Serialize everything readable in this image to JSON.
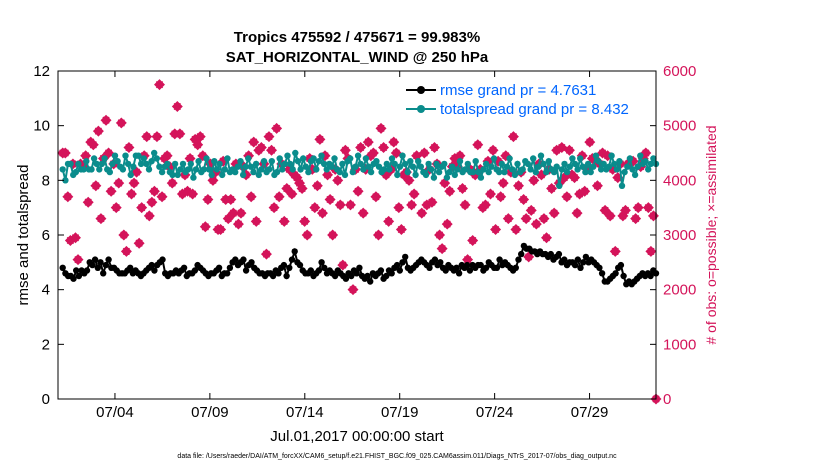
{
  "chart_data": {
    "type": "line",
    "title": "Tropics 475592 / 475671 = 99.983%",
    "subtitle": "SAT_HORIZONTAL_WIND @ 250 hPa",
    "xlabel": "Jul.01,2017 00:00:00 start",
    "ylabel": "rmse and totalspread",
    "y2label": "# of obs: o=possible; ×=assimilated",
    "xlim": [
      0,
      31.5
    ],
    "ylim": [
      0,
      12
    ],
    "y2lim": [
      0,
      6000
    ],
    "xticks": [
      3,
      8,
      13,
      18,
      23,
      28
    ],
    "xtick_labels": [
      "07/04",
      "07/09",
      "07/14",
      "07/19",
      "07/24",
      "07/29"
    ],
    "yticks": [
      "0",
      "2",
      "4",
      "6",
      "8",
      "10",
      "12"
    ],
    "y2ticks": [
      "0",
      "1000",
      "2000",
      "3000",
      "4000",
      "5000",
      "6000"
    ],
    "footer": "data file: /Users/raeder/DAI/ATM_forcXX/CAM6_setup/f.e21.FHIST_BGC.f09_025.CAM6assim.011/Diags_NTrS_2017-07/obs_diag_output.nc",
    "colors": {
      "rmse": "#000000",
      "spread": "#0a8c8c",
      "obs": "#d4145a",
      "legend_text": "#0066ff"
    },
    "series": [
      {
        "name": "rmse grand pr = 4.7631",
        "values": [
          4.8,
          4.6,
          4.5,
          4.5,
          4.4,
          4.7,
          4.5,
          4.7,
          4.6,
          4.7,
          5.0,
          4.9,
          5.1,
          4.8,
          5.0,
          4.6,
          4.9,
          5.1,
          4.8,
          4.8,
          4.7,
          4.6,
          4.6,
          4.6,
          4.7,
          4.8,
          4.6,
          4.7,
          4.6,
          4.5,
          4.6,
          4.7,
          4.8,
          4.9,
          4.7,
          4.9,
          5.0,
          5.1,
          4.6,
          4.5,
          4.6,
          4.6,
          4.7,
          4.6,
          4.7,
          4.8,
          4.5,
          4.6,
          4.6,
          4.7,
          4.9,
          4.8,
          4.7,
          4.6,
          4.5,
          4.6,
          4.6,
          4.7,
          4.8,
          4.5,
          4.6,
          4.6,
          4.8,
          5.0,
          5.1,
          4.9,
          5.0,
          5.1,
          4.7,
          4.9,
          5.0,
          4.8,
          4.7,
          4.6,
          4.6,
          4.5,
          4.6,
          4.6,
          4.5,
          4.7,
          4.6,
          4.8,
          4.9,
          4.5,
          4.8,
          5.1,
          5.4,
          5.0,
          4.9,
          4.7,
          4.6,
          4.6,
          4.7,
          4.5,
          4.6,
          4.7,
          5.0,
          4.8,
          4.6,
          4.7,
          4.6,
          4.5,
          4.7,
          4.6,
          4.5,
          4.4,
          4.6,
          4.5,
          4.7,
          4.6,
          4.8,
          4.5,
          4.4,
          4.5,
          4.3,
          4.6,
          4.5,
          4.6,
          4.7,
          4.4,
          4.5,
          4.7,
          4.6,
          4.8,
          4.9,
          4.7,
          5.0,
          5.2,
          4.8,
          4.7,
          4.8,
          4.9,
          5.0,
          5.1,
          5.0,
          4.9,
          4.8,
          5.0,
          5.1,
          4.9,
          5.0,
          4.8,
          4.7,
          4.9,
          4.8,
          4.7,
          4.8,
          4.6,
          4.9,
          4.8,
          4.9,
          4.7,
          4.9,
          4.8,
          4.9,
          4.9,
          4.7,
          4.8,
          5.0,
          4.9,
          4.8,
          4.8,
          5.1,
          4.9,
          5.0,
          4.9,
          4.8,
          4.7,
          4.8,
          5.1,
          5.3,
          5.6,
          5.5,
          5.5,
          5.4,
          5.4,
          5.3,
          5.4,
          5.3,
          5.3,
          5.2,
          5.3,
          5.1,
          5.2,
          5.3,
          5.0,
          5.1,
          4.9,
          5.0,
          5.0,
          4.9,
          5.1,
          4.8,
          5.0,
          5.2,
          5.0,
          5.1,
          5.0,
          4.9,
          4.8,
          4.6,
          4.3,
          4.3,
          4.4,
          4.5,
          4.6,
          4.8,
          4.9,
          4.5,
          4.2,
          4.3,
          4.2,
          4.3,
          4.4,
          4.5,
          4.6,
          4.5,
          4.6,
          4.5,
          4.7,
          4.6
        ]
      },
      {
        "name": "totalspread grand pr = 8.432",
        "values": [
          8.4,
          8.0,
          8.6,
          8.6,
          8.2,
          8.3,
          8.6,
          8.4,
          8.4,
          8.7,
          8.4,
          8.4,
          8.8,
          8.6,
          8.4,
          8.6,
          8.8,
          8.4,
          8.3,
          8.6,
          8.9,
          8.7,
          8.5,
          8.4,
          8.9,
          8.6,
          8.2,
          8.5,
          8.9,
          8.9,
          8.6,
          8.8,
          8.6,
          8.4,
          8.7,
          9.0,
          8.8,
          8.5,
          8.3,
          8.5,
          8.6,
          8.3,
          8.2,
          8.6,
          8.2,
          8.4,
          8.6,
          8.3,
          8.4,
          8.6,
          8.1,
          8.4,
          8.7,
          8.3,
          8.4,
          8.8,
          8.4,
          8.2,
          8.7,
          8.4,
          8.6,
          8.2,
          8.4,
          8.8,
          8.3,
          8.4,
          8.3,
          8.5,
          8.7,
          8.2,
          8.5,
          8.8,
          8.5,
          8.3,
          8.6,
          8.2,
          8.4,
          8.7,
          8.3,
          8.4,
          8.7,
          8.2,
          8.3,
          8.8,
          8.4,
          8.6,
          8.9,
          8.6,
          8.4,
          9.0,
          8.7,
          8.4,
          8.8,
          8.5,
          8.3,
          8.7,
          8.8,
          8.4,
          8.7,
          8.9,
          8.6,
          8.4,
          8.6,
          8.5,
          8.8,
          8.4,
          8.3,
          8.6,
          8.2,
          8.7,
          8.8,
          8.3,
          8.5,
          8.9,
          8.6,
          8.4,
          8.8,
          8.5,
          8.3,
          8.6,
          8.7,
          8.5,
          8.3,
          8.4,
          8.6,
          8.4,
          8.8,
          8.6,
          8.2,
          8.5,
          8.9,
          8.6,
          8.3,
          8.7,
          8.5,
          8.2,
          8.7,
          8.5,
          8.3,
          8.2,
          8.6,
          8.4,
          8.1,
          8.6,
          8.3,
          8.5,
          8.6,
          8.1,
          8.3,
          8.5,
          8.2,
          8.4,
          8.7,
          8.3,
          8.4,
          8.6,
          8.3,
          8.3,
          8.7,
          8.3,
          8.1,
          8.4,
          8.6,
          8.3,
          8.5,
          8.8,
          8.4,
          8.3,
          8.6,
          8.3,
          8.5,
          8.8,
          8.4,
          8.2,
          8.6,
          8.3,
          8.4,
          8.7,
          8.6,
          8.4,
          8.8,
          8.3,
          8.5,
          8.9,
          8.6,
          8.3,
          8.7,
          8.4,
          8.3,
          8.5,
          7.8,
          8.4,
          8.6,
          8.3,
          8.5,
          8.8,
          8.6,
          8.4,
          8.8,
          8.5,
          8.3,
          8.6,
          8.3,
          8.5,
          8.9,
          8.7,
          8.4,
          8.6,
          8.4,
          8.5,
          8.9,
          8.6,
          8.4,
          8.7,
          7.8,
          8.3,
          8.5,
          8.8,
          8.4,
          8.2,
          8.5,
          8.9,
          8.6,
          8.7,
          8.4,
          8.6,
          8.8,
          8.6
        ]
      },
      {
        "name": "assimilated",
        "axis": "right",
        "values": [
          4500,
          4500,
          3700,
          2900,
          4300,
          2950,
          2550,
          4300,
          4250,
          4450,
          3600,
          4700,
          4650,
          3900,
          4900,
          3300,
          4400,
          5100,
          4500,
          3800,
          4300,
          3500,
          3950,
          5050,
          3000,
          2700,
          4600,
          3750,
          3950,
          4150,
          2850,
          3500,
          4450,
          4800,
          3350,
          3600,
          3800,
          4800,
          5750,
          3700,
          4400,
          4450,
          4250,
          3950,
          4850,
          5350,
          4850,
          3750,
          4100,
          3800,
          4400,
          3750,
          4750,
          4650,
          4800,
          4450,
          3150,
          3650,
          4300,
          4000,
          4150,
          3100,
          3100,
          4350,
          3650,
          3300,
          3650,
          3400,
          4300,
          3200,
          3400,
          4250,
          4100,
          4450,
          3700,
          4700,
          3250,
          4550,
          4600,
          4300,
          2650,
          4800,
          4550,
          3500,
          4950,
          3700,
          4300,
          3250,
          3850,
          4200,
          3750,
          4100,
          4050,
          3950,
          3850,
          3250,
          3000,
          4400,
          4200,
          3500,
          3900,
          4750,
          3400,
          4450,
          4100,
          3650,
          3000,
          4200,
          4000,
          3550,
          2450,
          4550,
          4400,
          3550,
          2000,
          4200,
          3800,
          4600,
          3400,
          4200,
          4700,
          4450,
          4500,
          3700,
          3000,
          4950,
          4600,
          4100,
          3250,
          4200,
          4700,
          4500,
          3500,
          3100,
          4100,
          4150,
          4000,
          3550,
          3750,
          4450,
          5300,
          3400,
          4500,
          3550,
          4200,
          3600,
          4600,
          4300,
          3000,
          2750,
          3950,
          3200,
          3800,
          4250,
          4400,
          4250,
          4450,
          3850,
          3550,
          2550,
          4200,
          2900,
          4100,
          4650,
          4200,
          3500,
          3550,
          4350,
          3750,
          4550,
          3100,
          4350,
          3700,
          3950,
          4450,
          3300,
          4150,
          4800,
          3100,
          3900,
          4150,
          3650,
          3300,
          2600,
          3450,
          4000,
          3200,
          4300,
          4100,
          3300,
          2950,
          4200,
          3850,
          3400,
          4550,
          3950,
          4600,
          4050,
          3700,
          4550,
          4100,
          4050,
          3400,
          3750,
          4450,
          3800,
          4200,
          4700,
          4400,
          4400,
          3900,
          4300,
          4500,
          3450,
          4450,
          3350,
          4200,
          2700,
          4050,
          4300,
          3350,
          3450,
          4300,
          4350,
          4350,
          3300,
          3500,
          4250,
          4400,
          4500,
          3500,
          2700,
          3350,
          0
        ]
      }
    ]
  }
}
